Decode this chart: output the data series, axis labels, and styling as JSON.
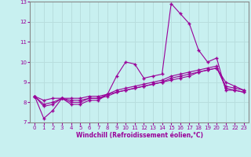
{
  "xlabel": "Windchill (Refroidissement éolien,°C)",
  "bg_color": "#c8f0f0",
  "line_color": "#990099",
  "grid_color": "#b8dede",
  "spine_color": "#888888",
  "xlim": [
    -0.5,
    23.5
  ],
  "ylim": [
    7,
    13
  ],
  "xticks": [
    0,
    1,
    2,
    3,
    4,
    5,
    6,
    7,
    8,
    9,
    10,
    11,
    12,
    13,
    14,
    15,
    16,
    17,
    18,
    19,
    20,
    21,
    22,
    23
  ],
  "yticks": [
    7,
    8,
    9,
    10,
    11,
    12,
    13
  ],
  "series": [
    [
      8.3,
      7.2,
      7.6,
      8.2,
      7.9,
      7.9,
      8.1,
      8.1,
      8.4,
      9.3,
      10.0,
      9.9,
      9.2,
      9.3,
      9.4,
      12.9,
      12.4,
      11.9,
      10.6,
      10.0,
      10.2,
      8.6,
      8.6,
      8.5
    ],
    [
      8.3,
      7.8,
      7.9,
      8.2,
      8.0,
      8.0,
      8.2,
      8.2,
      8.4,
      8.6,
      8.7,
      8.8,
      8.9,
      9.0,
      9.1,
      9.3,
      9.4,
      9.5,
      9.6,
      9.7,
      9.8,
      8.7,
      8.6,
      8.5
    ],
    [
      8.3,
      7.9,
      8.0,
      8.2,
      8.1,
      8.1,
      8.2,
      8.2,
      8.3,
      8.5,
      8.6,
      8.7,
      8.8,
      8.9,
      9.0,
      9.2,
      9.3,
      9.4,
      9.5,
      9.6,
      9.7,
      8.8,
      8.7,
      8.6
    ],
    [
      8.3,
      8.1,
      8.2,
      8.2,
      8.2,
      8.2,
      8.3,
      8.3,
      8.4,
      8.5,
      8.6,
      8.7,
      8.8,
      8.9,
      9.0,
      9.1,
      9.2,
      9.3,
      9.5,
      9.6,
      9.7,
      9.0,
      8.8,
      8.6
    ]
  ]
}
